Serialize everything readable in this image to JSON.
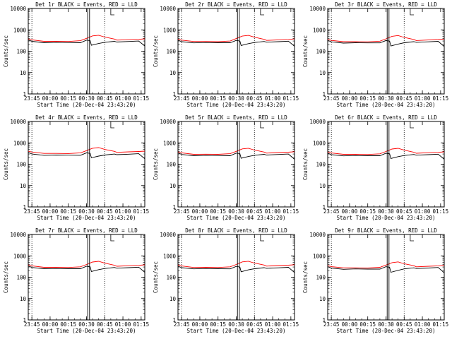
{
  "colors": {
    "background": "#ffffff",
    "axis": "#000000",
    "events": "#000000",
    "lld": "#ff0000"
  },
  "chart_data": [
    {
      "type": "line",
      "title": "Det 1r BLACK = Events, RED = LLD",
      "ylabel": "Counts/sec",
      "xlabel": "Start Time (20-Dec-04 23:43:20)",
      "x_ticks": [
        "23:45",
        "00:00",
        "00:15",
        "00:30",
        "00:45",
        "01:00",
        "01:15"
      ],
      "y_ticks": [
        "1",
        "10",
        "100",
        "1000",
        "10000"
      ],
      "yscale": "log",
      "ylim": [
        1,
        10000
      ],
      "series": [
        {
          "color": "#000000",
          "x_min": [
            -3,
            0,
            10,
            20,
            30,
            40,
            45,
            48,
            49,
            55,
            60,
            68,
            70,
            80,
            88,
            93
          ],
          "y": [
            340,
            290,
            250,
            260,
            255,
            250,
            330,
            310,
            190,
            230,
            260,
            290,
            270,
            285,
            300,
            175
          ]
        },
        {
          "color": "#ff0000",
          "x_min": [
            -3,
            0,
            10,
            20,
            30,
            40,
            45,
            50,
            55,
            60,
            68,
            70,
            80,
            88,
            93
          ],
          "y": [
            380,
            340,
            290,
            290,
            285,
            310,
            400,
            520,
            560,
            460,
            370,
            330,
            345,
            360,
            380
          ]
        }
      ]
    },
    {
      "type": "line",
      "title": "Det 2r BLACK = Events, RED = LLD",
      "ylabel": "Counts/sec",
      "xlabel": "Start Time (20-Dec-04 23:43:20)",
      "x_ticks": [
        "23:45",
        "00:00",
        "00:15",
        "00:30",
        "00:45",
        "01:00",
        "01:15"
      ],
      "y_ticks": [
        "1",
        "10",
        "100",
        "1000",
        "10000"
      ],
      "yscale": "log",
      "ylim": [
        1,
        10000
      ],
      "series": [
        {
          "color": "#000000",
          "x_min": [
            -3,
            0,
            10,
            20,
            30,
            40,
            45,
            48,
            49,
            55,
            60,
            68,
            70,
            80,
            88,
            93
          ],
          "y": [
            330,
            280,
            245,
            255,
            250,
            250,
            320,
            300,
            185,
            225,
            255,
            285,
            265,
            280,
            295,
            170
          ]
        },
        {
          "color": "#ff0000",
          "x_min": [
            -3,
            0,
            10,
            20,
            30,
            40,
            45,
            50,
            55,
            60,
            68,
            70,
            80,
            88,
            93
          ],
          "y": [
            370,
            330,
            285,
            285,
            280,
            300,
            390,
            510,
            550,
            450,
            360,
            320,
            340,
            355,
            375
          ]
        }
      ]
    },
    {
      "type": "line",
      "title": "Det 3r BLACK = Events, RED = LLD",
      "ylabel": "Counts/sec",
      "xlabel": "Start Time (20-Dec-04 23:43:20)",
      "x_ticks": [
        "23:45",
        "00:00",
        "00:15",
        "00:30",
        "00:45",
        "01:00",
        "01:15"
      ],
      "y_ticks": [
        "1",
        "10",
        "100",
        "1000",
        "10000"
      ],
      "yscale": "log",
      "ylim": [
        1,
        10000
      ],
      "series": [
        {
          "color": "#000000",
          "x_min": [
            -3,
            0,
            10,
            20,
            30,
            40,
            45,
            48,
            49,
            55,
            60,
            68,
            70,
            80,
            88,
            93
          ],
          "y": [
            320,
            275,
            240,
            250,
            245,
            245,
            315,
            295,
            175,
            215,
            250,
            280,
            260,
            275,
            290,
            165
          ]
        },
        {
          "color": "#ff0000",
          "x_min": [
            -3,
            0,
            10,
            20,
            30,
            40,
            45,
            50,
            55,
            60,
            68,
            70,
            80,
            88,
            93
          ],
          "y": [
            360,
            320,
            280,
            280,
            275,
            295,
            380,
            500,
            540,
            440,
            355,
            315,
            335,
            350,
            370
          ]
        }
      ]
    },
    {
      "type": "line",
      "title": "Det 4r BLACK = Events, RED = LLD",
      "ylabel": "Counts/sec",
      "xlabel": "Start Time (20-Dec-04 23:43:20)",
      "x_ticks": [
        "23:45",
        "00:00",
        "00:15",
        "00:30",
        "00:45",
        "01:00",
        "01:15"
      ],
      "y_ticks": [
        "1",
        "10",
        "100",
        "1000",
        "10000"
      ],
      "yscale": "log",
      "ylim": [
        1,
        10000
      ],
      "series": [
        {
          "color": "#000000",
          "x_min": [
            -3,
            0,
            10,
            20,
            30,
            40,
            45,
            48,
            49,
            55,
            60,
            68,
            70,
            80,
            88,
            93
          ],
          "y": [
            360,
            300,
            260,
            270,
            265,
            260,
            340,
            320,
            200,
            240,
            270,
            300,
            280,
            295,
            310,
            180
          ]
        },
        {
          "color": "#ff0000",
          "x_min": [
            -3,
            0,
            10,
            20,
            30,
            40,
            45,
            50,
            55,
            60,
            68,
            70,
            80,
            88,
            93
          ],
          "y": [
            410,
            370,
            320,
            320,
            315,
            340,
            430,
            560,
            600,
            490,
            400,
            360,
            380,
            395,
            410
          ]
        }
      ]
    },
    {
      "type": "line",
      "title": "Det 5r BLACK = Events, RED = LLD",
      "ylabel": "Counts/sec",
      "xlabel": "Start Time (20-Dec-04 23:43:20)",
      "x_ticks": [
        "23:45",
        "00:00",
        "00:15",
        "00:30",
        "00:45",
        "01:00",
        "01:15"
      ],
      "y_ticks": [
        "1",
        "10",
        "100",
        "1000",
        "10000"
      ],
      "yscale": "log",
      "ylim": [
        1,
        10000
      ],
      "series": [
        {
          "color": "#000000",
          "x_min": [
            -3,
            0,
            10,
            20,
            30,
            40,
            45,
            48,
            49,
            55,
            60,
            68,
            70,
            80,
            88,
            93
          ],
          "y": [
            340,
            285,
            250,
            260,
            255,
            250,
            330,
            310,
            190,
            230,
            260,
            290,
            270,
            285,
            300,
            170
          ]
        },
        {
          "color": "#ff0000",
          "x_min": [
            -3,
            0,
            10,
            20,
            30,
            40,
            45,
            50,
            55,
            60,
            68,
            70,
            80,
            88,
            93
          ],
          "y": [
            380,
            340,
            290,
            295,
            290,
            310,
            400,
            520,
            560,
            460,
            370,
            330,
            350,
            365,
            385
          ]
        }
      ]
    },
    {
      "type": "line",
      "title": "Det 6r BLACK = Events, RED = LLD",
      "ylabel": "Counts/sec",
      "xlabel": "Start Time (20-Dec-04 23:43:20)",
      "x_ticks": [
        "23:45",
        "00:00",
        "00:15",
        "00:30",
        "00:45",
        "01:00",
        "01:15"
      ],
      "y_ticks": [
        "1",
        "10",
        "100",
        "1000",
        "10000"
      ],
      "yscale": "log",
      "ylim": [
        1,
        10000
      ],
      "series": [
        {
          "color": "#000000",
          "x_min": [
            -3,
            0,
            10,
            20,
            30,
            40,
            45,
            48,
            49,
            55,
            60,
            68,
            70,
            80,
            88,
            93
          ],
          "y": [
            330,
            280,
            245,
            255,
            250,
            250,
            325,
            305,
            185,
            225,
            255,
            285,
            265,
            280,
            295,
            170
          ]
        },
        {
          "color": "#ff0000",
          "x_min": [
            -3,
            0,
            10,
            20,
            30,
            40,
            45,
            50,
            55,
            60,
            68,
            70,
            80,
            88,
            93
          ],
          "y": [
            375,
            335,
            290,
            290,
            285,
            305,
            395,
            515,
            555,
            455,
            365,
            325,
            345,
            360,
            380
          ]
        }
      ]
    },
    {
      "type": "line",
      "title": "Det 7r BLACK = Events, RED = LLD",
      "ylabel": "Counts/sec",
      "xlabel": "Start Time (20-Dec-04 23:43:20)",
      "x_ticks": [
        "23:45",
        "00:00",
        "00:15",
        "00:30",
        "00:45",
        "01:00",
        "01:15"
      ],
      "y_ticks": [
        "1",
        "10",
        "100",
        "1000",
        "10000"
      ],
      "yscale": "log",
      "ylim": [
        1,
        10000
      ],
      "series": [
        {
          "color": "#000000",
          "x_min": [
            -3,
            0,
            10,
            20,
            30,
            40,
            45,
            48,
            49,
            55,
            60,
            68,
            70,
            80,
            88,
            93
          ],
          "y": [
            335,
            285,
            250,
            255,
            250,
            250,
            325,
            305,
            185,
            225,
            255,
            285,
            265,
            280,
            295,
            170
          ]
        },
        {
          "color": "#ff0000",
          "x_min": [
            -3,
            0,
            10,
            20,
            30,
            40,
            45,
            50,
            55,
            60,
            68,
            70,
            80,
            88,
            93
          ],
          "y": [
            380,
            340,
            290,
            290,
            285,
            305,
            395,
            515,
            555,
            455,
            365,
            325,
            345,
            360,
            380
          ]
        }
      ]
    },
    {
      "type": "line",
      "title": "Det 8r BLACK = Events, RED = LLD",
      "ylabel": "Counts/sec",
      "xlabel": "Start Time (20-Dec-04 23:43:20)",
      "x_ticks": [
        "23:45",
        "00:00",
        "00:15",
        "00:30",
        "00:45",
        "01:00",
        "01:15"
      ],
      "y_ticks": [
        "1",
        "10",
        "100",
        "1000",
        "10000"
      ],
      "yscale": "log",
      "ylim": [
        1,
        10000
      ],
      "series": [
        {
          "color": "#000000",
          "x_min": [
            -3,
            0,
            10,
            20,
            30,
            40,
            45,
            48,
            49,
            55,
            60,
            68,
            70,
            80,
            88,
            93
          ],
          "y": [
            330,
            280,
            245,
            255,
            250,
            245,
            320,
            300,
            180,
            220,
            250,
            280,
            260,
            275,
            290,
            165
          ]
        },
        {
          "color": "#ff0000",
          "x_min": [
            -3,
            0,
            10,
            20,
            30,
            40,
            45,
            50,
            55,
            60,
            68,
            70,
            80,
            88,
            93
          ],
          "y": [
            375,
            335,
            285,
            290,
            285,
            305,
            395,
            520,
            560,
            460,
            370,
            330,
            350,
            365,
            385
          ]
        }
      ]
    },
    {
      "type": "line",
      "title": "Det 9r BLACK = Events, RED = LLD",
      "ylabel": "Counts/sec",
      "xlabel": "Start Time (20-Dec-04 23:43:20)",
      "x_ticks": [
        "23:45",
        "00:00",
        "00:15",
        "00:30",
        "00:45",
        "01:00",
        "01:15"
      ],
      "y_ticks": [
        "1",
        "10",
        "100",
        "1000",
        "10000"
      ],
      "yscale": "log",
      "ylim": [
        1,
        10000
      ],
      "series": [
        {
          "color": "#000000",
          "x_min": [
            -3,
            0,
            10,
            20,
            30,
            40,
            45,
            48,
            49,
            55,
            60,
            68,
            70,
            80,
            88,
            93
          ],
          "y": [
            310,
            270,
            235,
            245,
            240,
            240,
            310,
            290,
            170,
            210,
            245,
            275,
            255,
            270,
            285,
            160
          ]
        },
        {
          "color": "#ff0000",
          "x_min": [
            -3,
            0,
            10,
            20,
            30,
            40,
            45,
            50,
            55,
            60,
            68,
            70,
            80,
            88,
            93
          ],
          "y": [
            345,
            310,
            275,
            275,
            270,
            290,
            370,
            480,
            520,
            425,
            345,
            305,
            325,
            340,
            360
          ]
        }
      ]
    }
  ],
  "spike": {
    "x_min": [
      46,
      47.5
    ],
    "y": 10000
  },
  "dotted_lines_min": [
    0,
    60
  ],
  "x_range_min": [
    -3,
    93
  ]
}
